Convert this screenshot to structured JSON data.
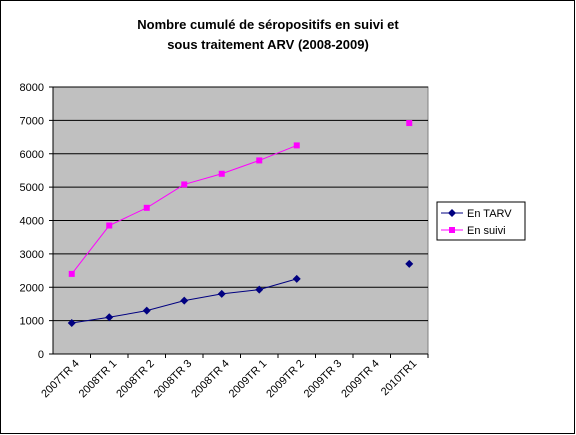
{
  "chart_data": {
    "type": "line",
    "title": [
      "Nombre cumulé de séropositifs en suivi et",
      "sous traitement ARV (2008-2009)"
    ],
    "categories": [
      "2007TR 4",
      "2008TR 1",
      "2008TR 2",
      "2008TR 3",
      "2008TR 4",
      "2009TR 1",
      "2009TR 2",
      "2009TR 3",
      "2009TR 4",
      "2010TR1"
    ],
    "series": [
      {
        "name": "En TARV",
        "color": "#000080",
        "marker": "diamond",
        "values": [
          930,
          1100,
          1300,
          1600,
          1800,
          1930,
          2250,
          null,
          null,
          2700
        ]
      },
      {
        "name": "En suivi",
        "color": "#ff00ff",
        "marker": "square",
        "values": [
          2400,
          3850,
          4380,
          5080,
          5400,
          5800,
          6250,
          null,
          null,
          6920
        ]
      }
    ],
    "ylim": [
      0,
      8000
    ],
    "yticks": [
      0,
      1000,
      2000,
      3000,
      4000,
      5000,
      6000,
      7000,
      8000
    ],
    "grid": true,
    "legend": "right"
  }
}
